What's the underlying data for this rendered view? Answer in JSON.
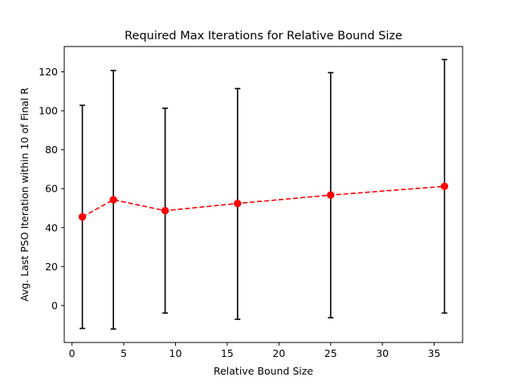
{
  "chart_data": {
    "type": "line",
    "title": "Required Max Iterations for Relative Bound Size",
    "xlabel": "Relative Bound Size",
    "ylabel": "Avg. Last PSO Iteration within 10 of Final R",
    "xlim": [
      -0.75,
      37.75
    ],
    "ylim": [
      -19,
      133
    ],
    "xticks": [
      0,
      5,
      10,
      15,
      20,
      25,
      30,
      35
    ],
    "yticks": [
      0,
      20,
      40,
      60,
      80,
      100,
      120
    ],
    "grid": false,
    "series": [
      {
        "x": [
          1,
          4,
          9,
          16,
          25,
          36
        ],
        "values": [
          45.5,
          54.3,
          48.7,
          52.4,
          56.7,
          61.2
        ],
        "error_low": [
          -11.8,
          -12.1,
          -3.9,
          -7.1,
          -6.3,
          -3.9
        ],
        "error_high": [
          102.8,
          120.7,
          101.3,
          111.4,
          119.6,
          126.3
        ],
        "color": "#ff0000",
        "line_style": "dashed",
        "marker": "circle",
        "error_bar_color": "#000000"
      }
    ]
  }
}
